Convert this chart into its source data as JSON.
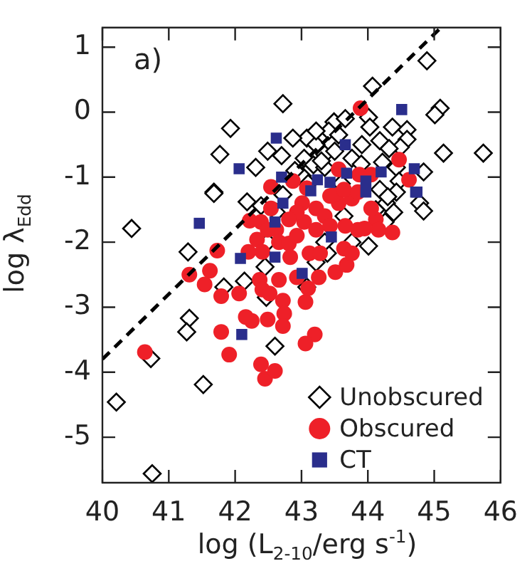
{
  "chart_data": {
    "type": "scatter",
    "xlabel": "log (L$_{2-10}$/erg s$^{-1}$)",
    "ylabel": "log λ$_{Edd}$",
    "annotations": [
      "a)"
    ],
    "xlim": [
      40,
      46
    ],
    "xticks": [
      40,
      41,
      42,
      43,
      44,
      45,
      46
    ],
    "ylim": [
      -5.7,
      1.3
    ],
    "yticks": [
      -5,
      -4,
      -3,
      -2,
      -1,
      0,
      1
    ],
    "grid": false,
    "legend": "bottom right",
    "series": [
      {
        "name": "Unobscured",
        "color": "#000000",
        "marker": "diamond",
        "x": [
          44.89,
          44.07,
          42.72,
          41.93,
          41.77,
          42.31,
          41.68,
          45.09,
          45.01,
          45.14,
          45.74,
          43.49,
          43.66,
          44.01,
          44.03,
          44.37,
          44.59,
          44.59,
          44.49,
          43.41,
          43.56,
          43.08,
          42.87,
          42.49,
          42.7,
          43.22,
          43.35,
          43.91,
          44.18,
          44.32,
          43.76,
          43.04,
          43.18,
          43.35,
          44.22,
          44.43,
          44.84,
          43.01,
          44.47,
          41.68,
          40.44,
          41.29,
          42.18,
          42.39,
          41.83,
          42.14,
          41.31,
          41.27,
          42.6,
          42.49,
          42.45,
          42.47,
          43.22,
          43.39,
          43.35,
          44.01,
          43.76,
          44.78,
          44.84,
          44.28,
          44.39,
          44.26,
          44.12,
          44.18,
          44.43,
          43.64,
          43.08,
          42.62,
          42.72,
          40.73,
          40.21,
          41.52,
          40.75,
          43.22,
          43.3,
          43.5,
          43.9,
          43.1,
          42.9,
          43.6,
          44.3
        ],
        "values": [
          0.79,
          0.4,
          0.13,
          -0.25,
          -0.65,
          -0.85,
          -1.23,
          0.06,
          -0.04,
          -0.63,
          -0.63,
          -0.15,
          -0.1,
          -0.08,
          -0.23,
          -0.23,
          -0.27,
          -0.42,
          -0.54,
          -0.29,
          -0.35,
          -0.4,
          -0.4,
          -0.6,
          -0.67,
          -0.5,
          -0.65,
          -0.5,
          -0.44,
          -0.56,
          -0.71,
          -0.71,
          -0.81,
          -0.85,
          -0.77,
          -0.85,
          -0.92,
          -0.98,
          -1.06,
          -1.25,
          -1.79,
          -2.15,
          -1.38,
          -1.44,
          -2.69,
          -2.6,
          -3.17,
          -3.38,
          -3.6,
          -2.0,
          -2.38,
          -2.85,
          -2.31,
          -2.17,
          -2.0,
          -2.06,
          -2.0,
          -1.4,
          -1.52,
          -1.4,
          -1.54,
          -1.69,
          -1.5,
          -1.19,
          -1.23,
          -1.6,
          -2.69,
          -1.54,
          -1.27,
          -3.79,
          -4.46,
          -4.19,
          -5.56,
          -0.29,
          -0.75,
          -0.6,
          -0.8,
          -1.1,
          -0.9,
          -1.1,
          -1.3
        ]
      },
      {
        "name": "Obscured",
        "color": "#ee2028",
        "marker": "circle",
        "x": [
          43.89,
          44.47,
          44.62,
          42.54,
          42.87,
          43.56,
          43.87,
          44.05,
          41.73,
          41.62,
          41.54,
          41.31,
          41.79,
          42.06,
          42.33,
          42.41,
          42.2,
          42.22,
          42.37,
          42.41,
          42.66,
          42.52,
          42.72,
          42.74,
          42.49,
          42.25,
          42.16,
          41.79,
          42.72,
          43.06,
          43.1,
          42.93,
          43.26,
          43.51,
          43.68,
          43.2,
          43.06,
          41.91,
          40.64,
          42.39,
          42.62,
          42.66,
          42.81,
          42.83,
          42.93,
          43.04,
          43.01,
          43.22,
          43.35,
          43.22,
          43.12,
          43.28,
          43.43,
          43.56,
          43.66,
          43.76,
          43.85,
          44.12,
          44.16,
          44.37,
          43.64,
          43.76,
          43.49,
          44.05,
          43.95,
          42.93,
          42.81,
          42.54,
          42.49,
          43.08,
          43.43,
          43.64,
          43.85,
          42.39,
          42.45,
          42.6
        ],
        "values": [
          0.06,
          -0.73,
          -1.04,
          -1.15,
          -1.06,
          -0.88,
          -0.96,
          -0.96,
          -2.13,
          -2.44,
          -2.65,
          -2.5,
          -2.83,
          -2.79,
          -1.96,
          -2.15,
          -2.15,
          -1.67,
          -2.58,
          -2.73,
          -2.58,
          -2.79,
          -2.9,
          -3.1,
          -3.19,
          -3.21,
          -3.15,
          -3.38,
          -3.29,
          -2.92,
          -2.71,
          -2.54,
          -2.54,
          -2.46,
          -2.35,
          -3.42,
          -3.56,
          -3.73,
          -3.69,
          -1.69,
          -1.81,
          -2.0,
          -2.02,
          -2.23,
          -1.9,
          -1.69,
          -1.4,
          -1.48,
          -1.6,
          -1.81,
          -2.17,
          -2.17,
          -1.75,
          -1.4,
          -1.75,
          -1.33,
          -1.81,
          -1.65,
          -1.81,
          -1.85,
          -2.1,
          -2.17,
          -1.27,
          -1.48,
          -1.79,
          -1.54,
          -1.65,
          -1.48,
          -1.81,
          -1.17,
          -1.29,
          -1.19,
          -1.23,
          -3.88,
          -4.1,
          -3.98
        ]
      },
      {
        "name": "CT",
        "color": "#2a2e8c",
        "marker": "square",
        "x": [
          42.62,
          44.51,
          43.66,
          42.06,
          43.68,
          44.2,
          44.7,
          42.7,
          43.24,
          43.43,
          43.97,
          44.74,
          41.46,
          42.72,
          42.6,
          43.14,
          43.97,
          44.72,
          43.45,
          42.6,
          42.08,
          43.01,
          42.1
        ],
        "values": [
          -0.4,
          0.04,
          -0.5,
          -0.87,
          -0.94,
          -0.92,
          -0.87,
          -1.0,
          -1.04,
          -1.08,
          -1.06,
          -1.23,
          -1.71,
          -1.4,
          -1.69,
          -1.21,
          -1.23,
          -1.23,
          -1.92,
          -2.23,
          -2.25,
          -2.48,
          -3.42
        ]
      },
      {
        "type": "line",
        "color": "#000000",
        "marker": "none",
        "line_style": "dashed",
        "x": [
          40,
          45.1
        ],
        "values": [
          -3.8,
          1.3
        ]
      }
    ]
  }
}
